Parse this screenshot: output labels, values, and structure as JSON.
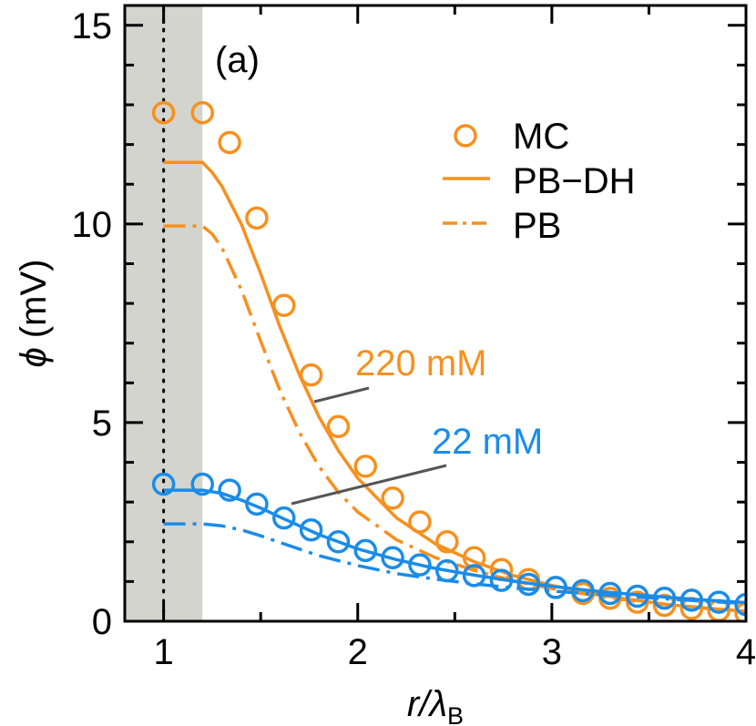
{
  "chart_data": {
    "type": "scatter",
    "panel_label": "(a)",
    "xlabel": {
      "main": "r/λ",
      "sub": "B"
    },
    "ylabel": {
      "symbol": "ϕ",
      "unit": "(mV)"
    },
    "xlim": [
      0.8,
      4.0
    ],
    "ylim": [
      0,
      15.5
    ],
    "xticks": [
      1,
      2,
      3,
      4
    ],
    "yticks": [
      0,
      5,
      10,
      15
    ],
    "shaded_region": [
      0.8,
      1.2
    ],
    "dotted_vline": 1.0,
    "legend": {
      "placement": "top-right",
      "entries": [
        {
          "label": "MC",
          "style": "circle"
        },
        {
          "label": "PB−DH",
          "style": "solid"
        },
        {
          "label": "PB",
          "style": "dashdot"
        }
      ]
    },
    "annotations": [
      {
        "text": "220 mM",
        "series": "220 mM",
        "color": "#f7901e",
        "at_x": 1.8,
        "at_y": 6.0
      },
      {
        "text": "22 mM",
        "series": "22 mM",
        "color": "#1a8ce8",
        "at_x": 1.65,
        "at_y": 2.9
      }
    ],
    "series": [
      {
        "name": "220 mM",
        "color": "#f7901e",
        "mc": {
          "x": [
            1.0,
            1.2,
            1.34,
            1.48,
            1.62,
            1.76,
            1.9,
            2.04,
            2.18,
            2.32,
            2.46,
            2.6,
            2.74,
            2.88,
            3.02,
            3.16,
            3.3,
            3.44,
            3.58,
            3.72,
            3.86,
            4.0
          ],
          "y": [
            12.8,
            12.8,
            12.05,
            10.15,
            7.95,
            6.2,
            4.9,
            3.9,
            3.1,
            2.5,
            2.0,
            1.6,
            1.3,
            1.05,
            0.85,
            0.7,
            0.58,
            0.48,
            0.4,
            0.32,
            0.27,
            0.2
          ]
        },
        "pb_dh": {
          "x": [
            1.0,
            1.2,
            1.25,
            1.3,
            1.4,
            1.5,
            1.6,
            1.7,
            1.8,
            1.9,
            2.0,
            2.2,
            2.4,
            2.6,
            2.8,
            3.0,
            3.2,
            3.4,
            3.6,
            3.8,
            4.0
          ],
          "y": [
            11.55,
            11.55,
            11.3,
            10.95,
            10.0,
            8.75,
            7.4,
            6.2,
            5.15,
            4.3,
            3.6,
            2.6,
            1.95,
            1.5,
            1.15,
            0.9,
            0.7,
            0.55,
            0.42,
            0.33,
            0.25
          ]
        },
        "pb": {
          "x": [
            1.0,
            1.2,
            1.25,
            1.3,
            1.4,
            1.5,
            1.6,
            1.7,
            1.8,
            1.9,
            2.0,
            2.2,
            2.4,
            2.6,
            2.8,
            3.0,
            3.2,
            3.4,
            3.6,
            3.8,
            4.0
          ],
          "y": [
            9.95,
            9.95,
            9.75,
            9.4,
            8.35,
            7.05,
            5.8,
            4.75,
            3.9,
            3.25,
            2.75,
            2.05,
            1.6,
            1.28,
            1.02,
            0.82,
            0.66,
            0.52,
            0.41,
            0.32,
            0.25
          ]
        }
      },
      {
        "name": "22 mM",
        "color": "#1a8ce8",
        "mc": {
          "x": [
            1.0,
            1.2,
            1.34,
            1.48,
            1.62,
            1.76,
            1.9,
            2.04,
            2.18,
            2.32,
            2.46,
            2.6,
            2.74,
            2.88,
            3.02,
            3.16,
            3.3,
            3.44,
            3.58,
            3.72,
            3.86,
            4.0
          ],
          "y": [
            3.45,
            3.45,
            3.3,
            2.95,
            2.6,
            2.3,
            2.0,
            1.78,
            1.6,
            1.42,
            1.27,
            1.15,
            1.03,
            0.93,
            0.85,
            0.77,
            0.7,
            0.63,
            0.58,
            0.53,
            0.48,
            0.42
          ]
        },
        "pb_dh": {
          "x": [
            1.0,
            1.2,
            1.3,
            1.4,
            1.5,
            1.6,
            1.8,
            2.0,
            2.2,
            2.4,
            2.6,
            2.8,
            3.0,
            3.2,
            3.4,
            3.6,
            3.8,
            4.0
          ],
          "y": [
            3.3,
            3.3,
            3.22,
            3.05,
            2.85,
            2.62,
            2.18,
            1.82,
            1.55,
            1.33,
            1.16,
            1.01,
            0.88,
            0.77,
            0.68,
            0.6,
            0.53,
            0.47
          ]
        },
        "pb": {
          "x": [
            1.0,
            1.2,
            1.3,
            1.4,
            1.5,
            1.6,
            1.8,
            2.0,
            2.2,
            2.4,
            2.6,
            2.8,
            3.0,
            3.2,
            3.4,
            3.6,
            3.8,
            4.0
          ],
          "y": [
            2.45,
            2.45,
            2.4,
            2.3,
            2.15,
            1.98,
            1.65,
            1.4,
            1.2,
            1.06,
            0.94,
            0.84,
            0.76,
            0.69,
            0.62,
            0.56,
            0.5,
            0.45
          ]
        }
      }
    ]
  }
}
